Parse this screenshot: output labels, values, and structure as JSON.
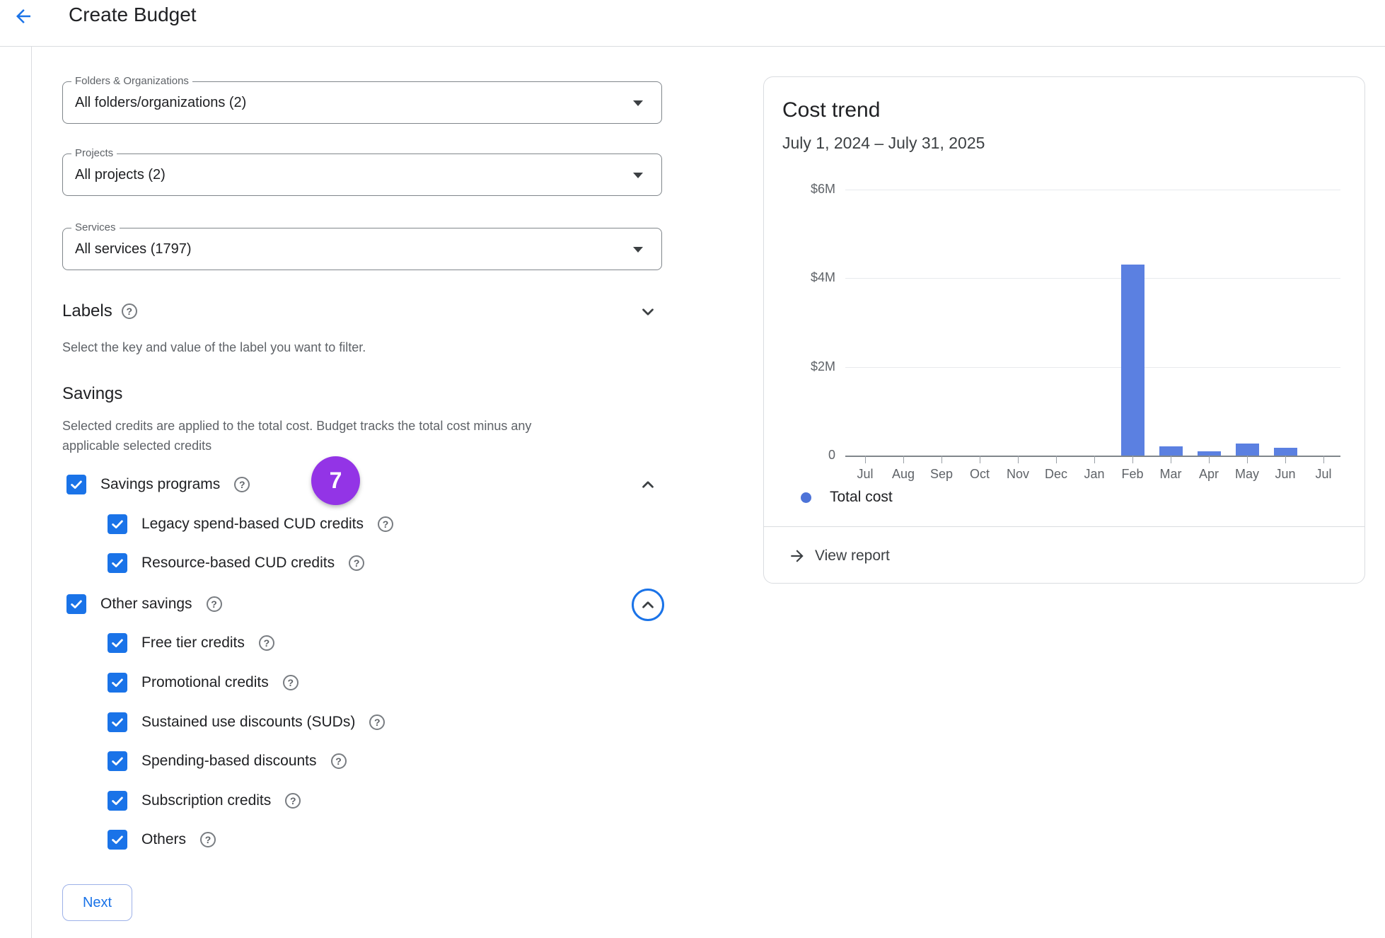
{
  "header": {
    "title": "Create Budget",
    "back_icon": "arrow-left"
  },
  "filters": {
    "folders": {
      "label": "Folders & Organizations",
      "value": "All folders/organizations (2)"
    },
    "projects": {
      "label": "Projects",
      "value": "All projects (2)"
    },
    "services": {
      "label": "Services",
      "value": "All services (1797)"
    }
  },
  "labels_section": {
    "title": "Labels",
    "description": "Select the key and value of the label you want to filter."
  },
  "savings": {
    "title": "Savings",
    "description_line1": "Selected credits are applied to the total cost. Budget tracks the total cost minus any",
    "description_line2": "applicable selected credits",
    "badge": "7",
    "items": [
      {
        "label": "Savings programs",
        "level": 1,
        "checked": true
      },
      {
        "label": "Legacy spend-based CUD credits",
        "level": 2,
        "checked": true
      },
      {
        "label": "Resource-based CUD credits",
        "level": 2,
        "checked": true
      },
      {
        "label": "Other savings",
        "level": 1,
        "checked": true
      },
      {
        "label": "Free tier credits",
        "level": 2,
        "checked": true
      },
      {
        "label": "Promotional credits",
        "level": 2,
        "checked": true
      },
      {
        "label": "Sustained use discounts (SUDs)",
        "level": 2,
        "checked": true
      },
      {
        "label": "Spending-based discounts",
        "level": 2,
        "checked": true
      },
      {
        "label": "Subscription credits",
        "level": 2,
        "checked": true
      },
      {
        "label": "Others",
        "level": 2,
        "checked": true
      }
    ]
  },
  "next_button": "Next",
  "cost_card": {
    "title": "Cost trend",
    "date_range": "July 1, 2024 – July 31, 2025",
    "legend_label": "Total cost",
    "view_report": "View report"
  },
  "chart_data": {
    "type": "bar",
    "title": "Cost trend",
    "subtitle": "July 1, 2024 – July 31, 2025",
    "categories": [
      "Jul",
      "Aug",
      "Sep",
      "Oct",
      "Nov",
      "Dec",
      "Jan",
      "Feb",
      "Mar",
      "Apr",
      "May",
      "Jun",
      "Jul"
    ],
    "values": [
      0,
      0,
      0,
      0,
      0,
      0,
      0,
      4.3,
      0.21,
      0.1,
      0.27,
      0.18,
      0
    ],
    "series_name": "Total cost",
    "unit": "$M (USD, millions)",
    "xlabel": "",
    "ylabel": "",
    "ylim": [
      0,
      6
    ],
    "y_tick_labels": [
      "$6M",
      "$4M",
      "$2M",
      "0"
    ],
    "y_tick_values": [
      6,
      4,
      2,
      0
    ],
    "grid": true,
    "legend_position": "bottom-left",
    "bar_color": "#5b80e1"
  },
  "colors": {
    "primary_blue": "#1a73e8",
    "badge_purple": "#9334e6",
    "bar_blue": "#5b80e1",
    "divider_grey": "#dadce0"
  }
}
